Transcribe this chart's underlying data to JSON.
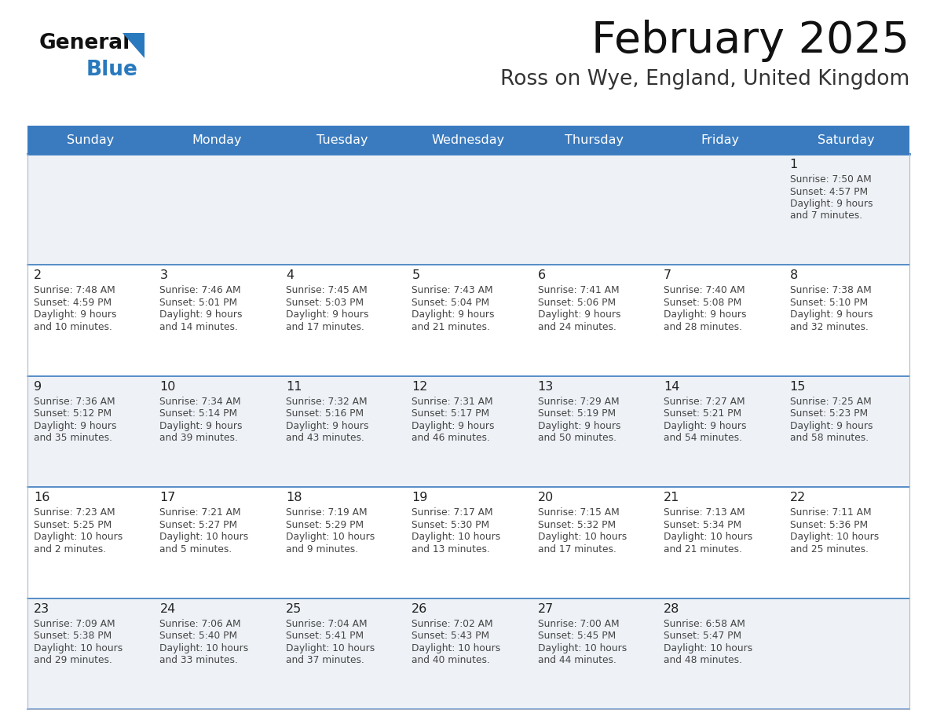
{
  "title": "February 2025",
  "subtitle": "Ross on Wye, England, United Kingdom",
  "days_of_week": [
    "Sunday",
    "Monday",
    "Tuesday",
    "Wednesday",
    "Thursday",
    "Friday",
    "Saturday"
  ],
  "header_bg_color": "#3a7bbf",
  "header_text_color": "#ffffff",
  "row_bg_even": "#eef2f7",
  "row_bg_odd": "#ffffff",
  "border_color_strong": "#3a7bbf",
  "border_color_light": "#b0b8c8",
  "day_num_color": "#222222",
  "info_text_color": "#444444",
  "title_color": "#111111",
  "subtitle_color": "#333333",
  "logo_general_color": "#111111",
  "logo_blue_color": "#2979be",
  "logo_triangle_color": "#2979be",
  "calendar_data": [
    {
      "day": 1,
      "col": 6,
      "row": 0,
      "sunrise": "7:50 AM",
      "sunset": "4:57 PM",
      "daylight_hours": 9,
      "daylight_minutes": 7
    },
    {
      "day": 2,
      "col": 0,
      "row": 1,
      "sunrise": "7:48 AM",
      "sunset": "4:59 PM",
      "daylight_hours": 9,
      "daylight_minutes": 10
    },
    {
      "day": 3,
      "col": 1,
      "row": 1,
      "sunrise": "7:46 AM",
      "sunset": "5:01 PM",
      "daylight_hours": 9,
      "daylight_minutes": 14
    },
    {
      "day": 4,
      "col": 2,
      "row": 1,
      "sunrise": "7:45 AM",
      "sunset": "5:03 PM",
      "daylight_hours": 9,
      "daylight_minutes": 17
    },
    {
      "day": 5,
      "col": 3,
      "row": 1,
      "sunrise": "7:43 AM",
      "sunset": "5:04 PM",
      "daylight_hours": 9,
      "daylight_minutes": 21
    },
    {
      "day": 6,
      "col": 4,
      "row": 1,
      "sunrise": "7:41 AM",
      "sunset": "5:06 PM",
      "daylight_hours": 9,
      "daylight_minutes": 24
    },
    {
      "day": 7,
      "col": 5,
      "row": 1,
      "sunrise": "7:40 AM",
      "sunset": "5:08 PM",
      "daylight_hours": 9,
      "daylight_minutes": 28
    },
    {
      "day": 8,
      "col": 6,
      "row": 1,
      "sunrise": "7:38 AM",
      "sunset": "5:10 PM",
      "daylight_hours": 9,
      "daylight_minutes": 32
    },
    {
      "day": 9,
      "col": 0,
      "row": 2,
      "sunrise": "7:36 AM",
      "sunset": "5:12 PM",
      "daylight_hours": 9,
      "daylight_minutes": 35
    },
    {
      "day": 10,
      "col": 1,
      "row": 2,
      "sunrise": "7:34 AM",
      "sunset": "5:14 PM",
      "daylight_hours": 9,
      "daylight_minutes": 39
    },
    {
      "day": 11,
      "col": 2,
      "row": 2,
      "sunrise": "7:32 AM",
      "sunset": "5:16 PM",
      "daylight_hours": 9,
      "daylight_minutes": 43
    },
    {
      "day": 12,
      "col": 3,
      "row": 2,
      "sunrise": "7:31 AM",
      "sunset": "5:17 PM",
      "daylight_hours": 9,
      "daylight_minutes": 46
    },
    {
      "day": 13,
      "col": 4,
      "row": 2,
      "sunrise": "7:29 AM",
      "sunset": "5:19 PM",
      "daylight_hours": 9,
      "daylight_minutes": 50
    },
    {
      "day": 14,
      "col": 5,
      "row": 2,
      "sunrise": "7:27 AM",
      "sunset": "5:21 PM",
      "daylight_hours": 9,
      "daylight_minutes": 54
    },
    {
      "day": 15,
      "col": 6,
      "row": 2,
      "sunrise": "7:25 AM",
      "sunset": "5:23 PM",
      "daylight_hours": 9,
      "daylight_minutes": 58
    },
    {
      "day": 16,
      "col": 0,
      "row": 3,
      "sunrise": "7:23 AM",
      "sunset": "5:25 PM",
      "daylight_hours": 10,
      "daylight_minutes": 2
    },
    {
      "day": 17,
      "col": 1,
      "row": 3,
      "sunrise": "7:21 AM",
      "sunset": "5:27 PM",
      "daylight_hours": 10,
      "daylight_minutes": 5
    },
    {
      "day": 18,
      "col": 2,
      "row": 3,
      "sunrise": "7:19 AM",
      "sunset": "5:29 PM",
      "daylight_hours": 10,
      "daylight_minutes": 9
    },
    {
      "day": 19,
      "col": 3,
      "row": 3,
      "sunrise": "7:17 AM",
      "sunset": "5:30 PM",
      "daylight_hours": 10,
      "daylight_minutes": 13
    },
    {
      "day": 20,
      "col": 4,
      "row": 3,
      "sunrise": "7:15 AM",
      "sunset": "5:32 PM",
      "daylight_hours": 10,
      "daylight_minutes": 17
    },
    {
      "day": 21,
      "col": 5,
      "row": 3,
      "sunrise": "7:13 AM",
      "sunset": "5:34 PM",
      "daylight_hours": 10,
      "daylight_minutes": 21
    },
    {
      "day": 22,
      "col": 6,
      "row": 3,
      "sunrise": "7:11 AM",
      "sunset": "5:36 PM",
      "daylight_hours": 10,
      "daylight_minutes": 25
    },
    {
      "day": 23,
      "col": 0,
      "row": 4,
      "sunrise": "7:09 AM",
      "sunset": "5:38 PM",
      "daylight_hours": 10,
      "daylight_minutes": 29
    },
    {
      "day": 24,
      "col": 1,
      "row": 4,
      "sunrise": "7:06 AM",
      "sunset": "5:40 PM",
      "daylight_hours": 10,
      "daylight_minutes": 33
    },
    {
      "day": 25,
      "col": 2,
      "row": 4,
      "sunrise": "7:04 AM",
      "sunset": "5:41 PM",
      "daylight_hours": 10,
      "daylight_minutes": 37
    },
    {
      "day": 26,
      "col": 3,
      "row": 4,
      "sunrise": "7:02 AM",
      "sunset": "5:43 PM",
      "daylight_hours": 10,
      "daylight_minutes": 40
    },
    {
      "day": 27,
      "col": 4,
      "row": 4,
      "sunrise": "7:00 AM",
      "sunset": "5:45 PM",
      "daylight_hours": 10,
      "daylight_minutes": 44
    },
    {
      "day": 28,
      "col": 5,
      "row": 4,
      "sunrise": "6:58 AM",
      "sunset": "5:47 PM",
      "daylight_hours": 10,
      "daylight_minutes": 48
    }
  ]
}
